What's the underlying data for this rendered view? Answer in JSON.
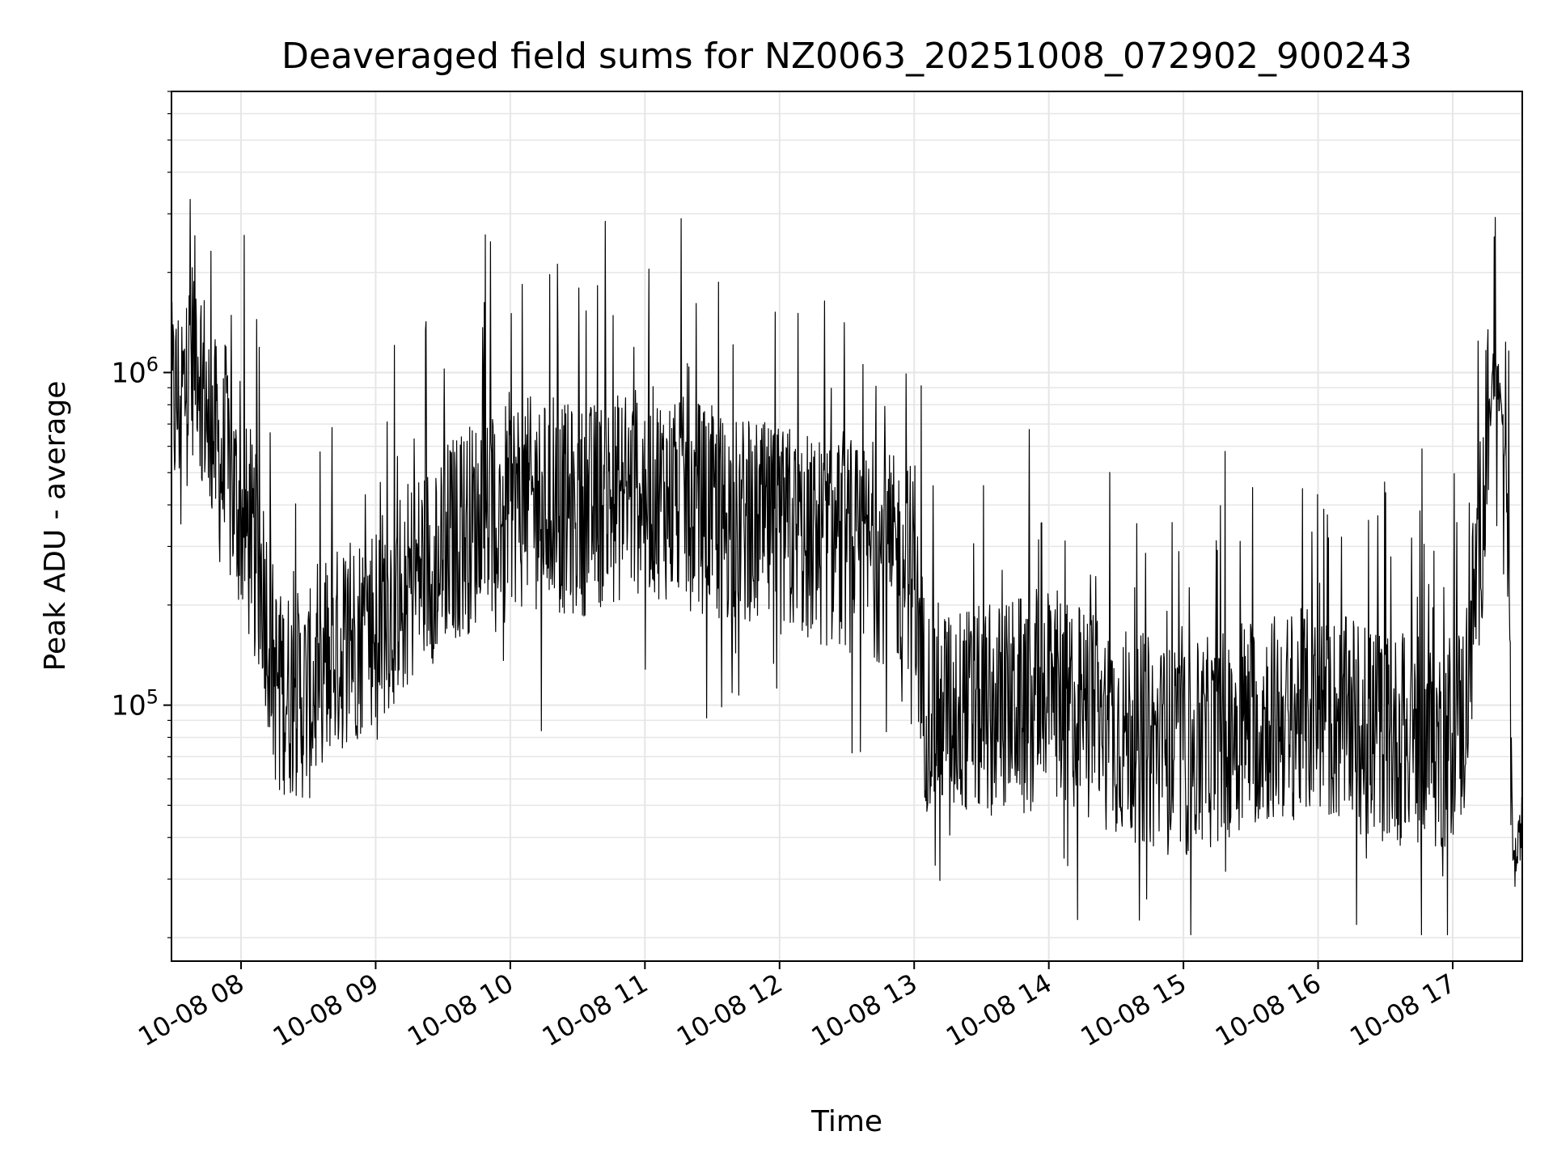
{
  "chart_data": {
    "type": "line",
    "title": "Deaveraged field sums for NZ0063_20251008_072902_900243",
    "xlabel": "Time",
    "ylabel": "Peak ADU - average",
    "yscale": "log",
    "ylim": [
      17000,
      7000000
    ],
    "xlim": [
      "2025-10-08 07:29",
      "2025-10-08 17:31"
    ],
    "grid": true,
    "line_color": "#000000",
    "grid_color": "#e6e6e6",
    "x_ticks": [
      "10-08 08",
      "10-08 09",
      "10-08 10",
      "10-08 11",
      "10-08 12",
      "10-08 13",
      "10-08 14",
      "10-08 15",
      "10-08 16",
      "10-08 17"
    ],
    "y_ticks": [
      {
        "base": "10",
        "exp": "5",
        "value": 100000
      },
      {
        "base": "10",
        "exp": "6",
        "value": 1000000
      }
    ],
    "series": [
      {
        "x": [
          "2025-10-08 07:29",
          "2025-10-08 07:35",
          "2025-10-08 07:40",
          "2025-10-08 07:44",
          "2025-10-08 07:50",
          "2025-10-08 08:00",
          "2025-10-08 08:10",
          "2025-10-08 08:15",
          "2025-10-08 08:20",
          "2025-10-08 08:30",
          "2025-10-08 08:40",
          "2025-10-08 09:00",
          "2025-10-08 09:30",
          "2025-10-08 10:00",
          "2025-10-08 10:30",
          "2025-10-08 11:00",
          "2025-10-08 11:30",
          "2025-10-08 12:00",
          "2025-10-08 12:30",
          "2025-10-08 12:59",
          "2025-10-08 13:05",
          "2025-10-08 13:30",
          "2025-10-08 14:00",
          "2025-10-08 14:30",
          "2025-10-08 15:00",
          "2025-10-08 15:30",
          "2025-10-08 16:00",
          "2025-10-08 16:30",
          "2025-10-08 16:55",
          "2025-10-08 17:05",
          "2025-10-08 17:10",
          "2025-10-08 17:15",
          "2025-10-08 17:18",
          "2025-10-08 17:22",
          "2025-10-08 17:25",
          "2025-10-08 17:27",
          "2025-10-08 17:29",
          "2025-10-08 17:31"
        ],
        "values": [
          780000,
          880000,
          1300000,
          850000,
          550000,
          380000,
          230000,
          120000,
          110000,
          105000,
          140000,
          180000,
          300000,
          420000,
          380000,
          450000,
          380000,
          330000,
          300000,
          260000,
          100000,
          95000,
          110000,
          85000,
          70000,
          90000,
          95000,
          80000,
          75000,
          90000,
          220000,
          520000,
          1000000,
          820000,
          300000,
          32000,
          36000,
          46000
        ]
      }
    ]
  }
}
